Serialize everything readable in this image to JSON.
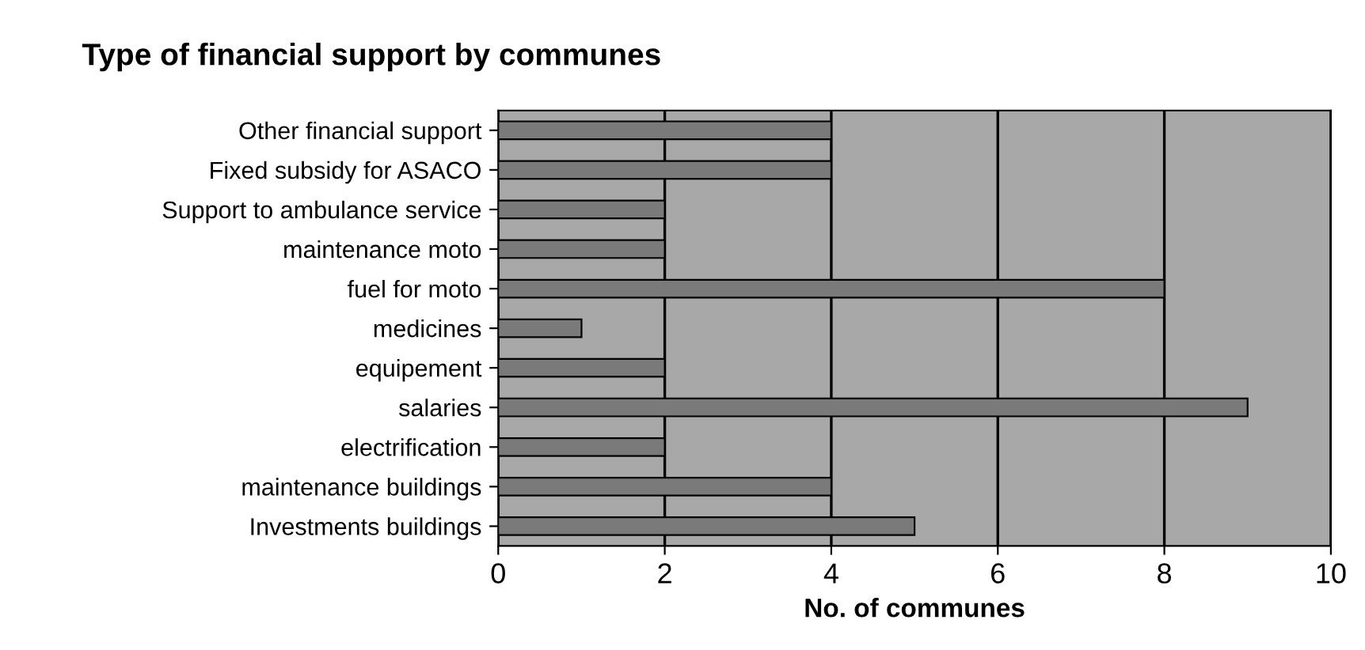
{
  "chart_data": {
    "type": "bar",
    "orientation": "horizontal",
    "title": "Type of financial support by communes",
    "xlabel": "No. of communes",
    "categories": [
      "Other financial support",
      "Fixed subsidy for ASACO",
      "Support to ambulance service",
      "maintenance moto",
      "fuel for moto",
      "medicines",
      "equipement",
      "salaries",
      "electrification",
      "maintenance buildings",
      "Investments buildings"
    ],
    "values": [
      4,
      4,
      2,
      2,
      8,
      1,
      2,
      9,
      2,
      4,
      5
    ],
    "color": "#7a7a7a",
    "xlim": [
      0,
      10
    ],
    "xticks": [
      0,
      2,
      4,
      6,
      8,
      10
    ],
    "grid": "x"
  }
}
